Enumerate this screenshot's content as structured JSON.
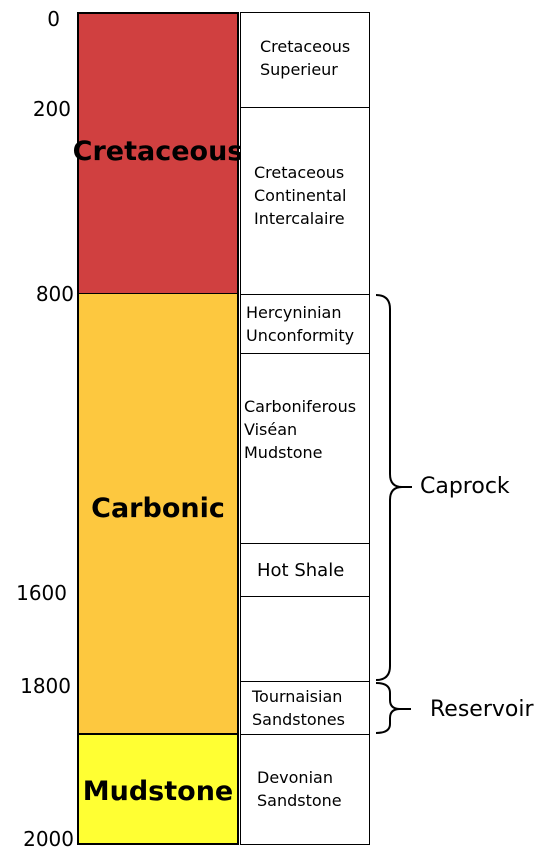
{
  "depth_labels": {
    "d0": "0",
    "d200": "200",
    "d800": "800",
    "d1600": "1600",
    "d1800": "1800",
    "d2000": "2000"
  },
  "eras": {
    "cretaceous": {
      "label": "Cretaceous",
      "color": "#d04040"
    },
    "carbonic": {
      "label": "Carbonic",
      "color": "#fdc83f"
    },
    "mudstone": {
      "label": "Mudstone",
      "color": "#ffff33"
    }
  },
  "units": {
    "cretaceous_superieur": "Cretaceous\nSuperieur",
    "continental_intercalaire": "Cretaceous\nContinental\nIntercalaire",
    "hercyninian": "Hercyninian\nUnconformity",
    "visean_mudstone": "Carboniferous\nViséan\nMudstone",
    "hot_shale": "Hot Shale",
    "blank": "",
    "tournaisian": "Tournaisian\nSandstones",
    "devonian": "Devonian\nSandstone"
  },
  "brackets": {
    "caprock": "Caprock",
    "reservoir": "Reservoir"
  }
}
